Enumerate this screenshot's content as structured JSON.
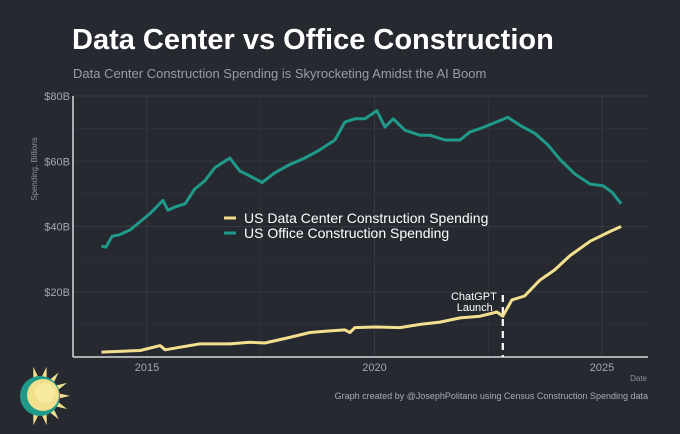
{
  "chart_data": {
    "type": "line",
    "title": "Data Center vs Office Construction",
    "subtitle": "Data Center Construction Spending is Skyrocketing Amidst the AI Boom",
    "xlabel": "Date",
    "ylabel": "Spending, Billions",
    "xlim": [
      2013.7,
      2026.0
    ],
    "ylim": [
      0,
      80
    ],
    "x_ticks": [
      2015,
      2020,
      2025
    ],
    "x_tick_labels": [
      "2015",
      "2020",
      "2025"
    ],
    "y_ticks": [
      20,
      40,
      60,
      80
    ],
    "y_tick_labels": [
      "$20B",
      "$40B",
      "$60B",
      "$80B"
    ],
    "grid": true,
    "legend_position": "center",
    "series": [
      {
        "name": "US Data Center Construction Spending",
        "color": "#f3e08e",
        "x": [
          2014.0,
          2014.85,
          2015.29,
          2015.4,
          2015.73,
          2016.16,
          2016.82,
          2017.26,
          2017.59,
          2018.14,
          2018.58,
          2019.02,
          2019.35,
          2019.46,
          2019.57,
          2020.01,
          2020.56,
          2021.0,
          2021.44,
          2021.88,
          2022.32,
          2022.69,
          2022.82,
          2023.02,
          2023.3,
          2023.63,
          2023.96,
          2024.29,
          2024.74,
          2024.96,
          2025.18,
          2025.42
        ],
        "values": [
          1.5,
          2,
          3.5,
          2.2,
          3,
          4,
          4,
          4.5,
          4.3,
          6,
          7.5,
          8,
          8.3,
          7.5,
          9,
          9.2,
          9,
          10,
          10.7,
          12,
          12.5,
          13.8,
          12.5,
          17.5,
          18.7,
          23.5,
          26.7,
          31,
          35.5,
          37,
          38.5,
          40
        ]
      },
      {
        "name": "US Office Construction Spending",
        "color": "#1f9a8a",
        "x": [
          2014.0,
          2014.1,
          2014.23,
          2014.4,
          2014.63,
          2014.85,
          2015.07,
          2015.35,
          2015.46,
          2015.62,
          2015.84,
          2016.05,
          2016.27,
          2016.49,
          2016.82,
          2017.04,
          2017.26,
          2017.53,
          2017.81,
          2018.14,
          2018.47,
          2018.8,
          2019.13,
          2019.35,
          2019.57,
          2019.79,
          2020.05,
          2020.23,
          2020.41,
          2020.67,
          2021.0,
          2021.22,
          2021.55,
          2021.88,
          2022.1,
          2022.32,
          2022.76,
          2022.93,
          2023.2,
          2023.53,
          2023.81,
          2024.08,
          2024.41,
          2024.74,
          2025.02,
          2025.22,
          2025.42
        ],
        "values": [
          34,
          33.7,
          37,
          37.5,
          39,
          41.5,
          44,
          48,
          45,
          46,
          47,
          51.5,
          54,
          58,
          61,
          57,
          55.5,
          53.5,
          56.5,
          59,
          61,
          63.5,
          66.5,
          72,
          73,
          73,
          75.5,
          70.5,
          73,
          69.5,
          68,
          68,
          66.5,
          66.5,
          69,
          70,
          72.5,
          73.5,
          71,
          68.5,
          65,
          60.5,
          56,
          53,
          52.5,
          50.5,
          47
        ]
      }
    ],
    "annotations": [
      {
        "text_line1": "ChatGPT",
        "text_line2": "Launch",
        "x": 2022.82,
        "style": "dashed vertical line"
      }
    ],
    "credit": "Graph created by @JosephPolitano using Census Construction Spending data"
  },
  "colors": {
    "background": "#262930",
    "grid": "#363941",
    "axis": "#d8d9dc"
  },
  "logo": {
    "icon": "sun-logo-icon"
  }
}
